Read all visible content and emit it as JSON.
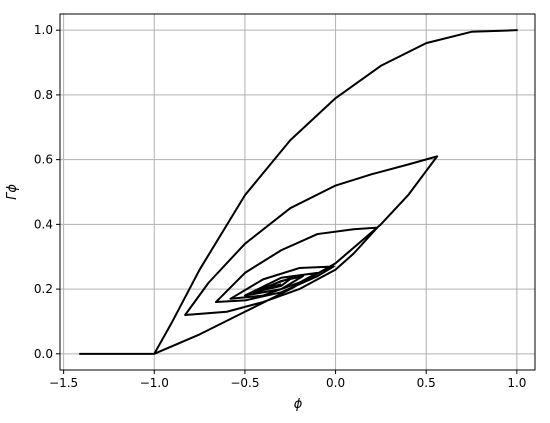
{
  "chart_data": {
    "type": "line",
    "x_label": "ϕ",
    "y_label": "Γϕ",
    "x": [
      -1.414,
      -1.0,
      -0.9,
      -0.75,
      -0.5,
      -0.25,
      0.0,
      0.25,
      0.5,
      0.75,
      1.0,
      0.75,
      0.5,
      0.25,
      0.0,
      -0.25,
      -0.5,
      -0.75,
      -0.9,
      -1.0,
      -0.75,
      -0.5,
      -0.25,
      0.0,
      0.25,
      0.4,
      0.56,
      0.4,
      0.2,
      0.0,
      -0.25,
      -0.5,
      -0.7,
      -0.83,
      -0.6,
      -0.4,
      -0.2,
      0.0,
      0.1,
      0.23,
      0.1,
      -0.1,
      -0.3,
      -0.5,
      -0.66,
      -0.5,
      -0.3,
      -0.1,
      -0.01,
      -0.2,
      -0.4,
      -0.58,
      -0.4,
      -0.2,
      -0.1,
      -0.3,
      -0.5,
      -0.3,
      -0.18,
      -0.3,
      -0.45,
      -0.3,
      -0.24,
      -0.32,
      -0.4,
      -0.3
    ],
    "series": [
      {
        "color": "#000000",
        "values": [
          0.0,
          0.0,
          0.1,
          0.26,
          0.49,
          0.66,
          0.79,
          0.89,
          0.96,
          0.995,
          1.0,
          0.995,
          0.96,
          0.89,
          0.79,
          0.66,
          0.49,
          0.26,
          0.1,
          0.0,
          0.06,
          0.13,
          0.2,
          0.28,
          0.4,
          0.49,
          0.61,
          0.585,
          0.555,
          0.52,
          0.45,
          0.34,
          0.22,
          0.12,
          0.13,
          0.16,
          0.2,
          0.26,
          0.31,
          0.39,
          0.385,
          0.37,
          0.32,
          0.25,
          0.16,
          0.165,
          0.19,
          0.24,
          0.27,
          0.265,
          0.23,
          0.17,
          0.18,
          0.22,
          0.25,
          0.235,
          0.18,
          0.2,
          0.24,
          0.225,
          0.19,
          0.21,
          0.235,
          0.22,
          0.2,
          0.215
        ]
      }
    ],
    "xlim": [
      -1.52,
      1.1
    ],
    "ylim": [
      -0.05,
      1.05
    ],
    "xticks": [
      {
        "value": -1.5,
        "label": "−1.5"
      },
      {
        "value": -1.0,
        "label": "−1.0"
      },
      {
        "value": -0.5,
        "label": "−0.5"
      },
      {
        "value": 0,
        "label": "0.0"
      },
      {
        "value": 0.5,
        "label": "0.5"
      },
      {
        "value": 1,
        "label": "1.0"
      }
    ],
    "yticks": [
      {
        "value": 0,
        "label": "0.0"
      },
      {
        "value": 0.2,
        "label": "0.2"
      },
      {
        "value": 0.4,
        "label": "0.4"
      },
      {
        "value": 0.6,
        "label": "0.6"
      },
      {
        "value": 0.8,
        "label": "0.8"
      },
      {
        "value": 1,
        "label": "1.0"
      }
    ],
    "grid": true
  }
}
